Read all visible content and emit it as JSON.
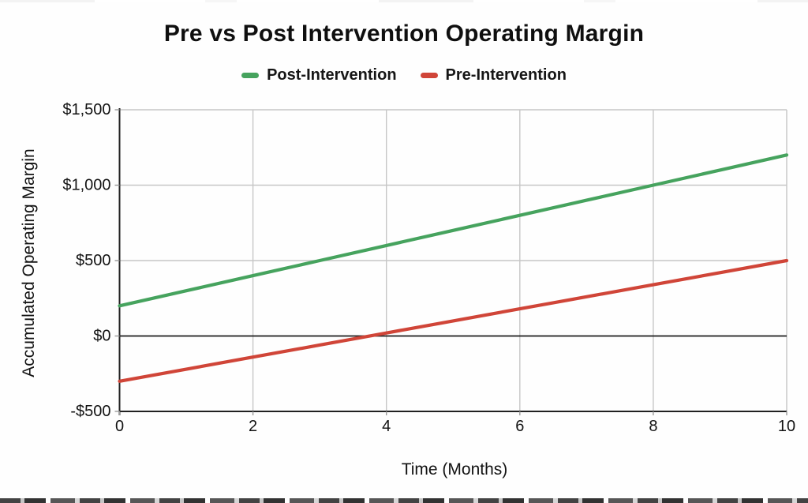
{
  "chart_data": {
    "type": "line",
    "title": "Pre vs Post Intervention Operating Margin",
    "xlabel": "Time (Months)",
    "ylabel": "Accumulated Operating Margin",
    "x": [
      0,
      1,
      2,
      3,
      4,
      5,
      6,
      7,
      8,
      9,
      10
    ],
    "series": [
      {
        "name": "Post-Intervention",
        "color": "#46a35e",
        "values": [
          200,
          300,
          400,
          500,
          600,
          700,
          800,
          900,
          1000,
          1100,
          1200
        ]
      },
      {
        "name": "Pre-Intervention",
        "color": "#d04538",
        "values": [
          -300,
          -220,
          -140,
          -60,
          20,
          100,
          180,
          260,
          340,
          420,
          500
        ]
      }
    ],
    "xlim": [
      0,
      10
    ],
    "ylim": [
      -500,
      1500
    ],
    "xticks": {
      "values": [
        0,
        2,
        4,
        6,
        8,
        10
      ],
      "labels": [
        "0",
        "2",
        "4",
        "6",
        "8",
        "10"
      ]
    },
    "yticks": {
      "values": [
        -500,
        0,
        500,
        1000,
        1500
      ],
      "labels": [
        "-$500",
        "$0",
        "$500",
        "$1,000",
        "$1,500"
      ]
    },
    "legend_position": "top-center",
    "grid": true,
    "zero_line": true,
    "colors": {
      "grid": "#c6c6c6",
      "axis": "#212121",
      "zero_line": "#1c1c1c",
      "tick_text": "#131313"
    }
  }
}
